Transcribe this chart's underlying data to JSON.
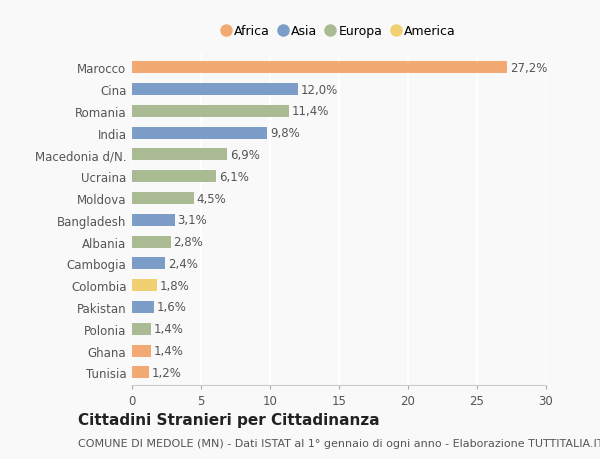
{
  "categories": [
    "Marocco",
    "Cina",
    "Romania",
    "India",
    "Macedonia d/N.",
    "Ucraina",
    "Moldova",
    "Bangladesh",
    "Albania",
    "Cambogia",
    "Colombia",
    "Pakistan",
    "Polonia",
    "Ghana",
    "Tunisia"
  ],
  "values": [
    27.2,
    12.0,
    11.4,
    9.8,
    6.9,
    6.1,
    4.5,
    3.1,
    2.8,
    2.4,
    1.8,
    1.6,
    1.4,
    1.4,
    1.2
  ],
  "labels": [
    "27,2%",
    "12,0%",
    "11,4%",
    "9,8%",
    "6,9%",
    "6,1%",
    "4,5%",
    "3,1%",
    "2,8%",
    "2,4%",
    "1,8%",
    "1,6%",
    "1,4%",
    "1,4%",
    "1,2%"
  ],
  "continents": [
    "Africa",
    "Asia",
    "Europa",
    "Asia",
    "Europa",
    "Europa",
    "Europa",
    "Asia",
    "Europa",
    "Asia",
    "America",
    "Asia",
    "Europa",
    "Africa",
    "Africa"
  ],
  "colors": {
    "Africa": "#F2AA72",
    "Asia": "#7B9DC8",
    "Europa": "#AABB94",
    "America": "#F0D070"
  },
  "legend_order": [
    "Africa",
    "Asia",
    "Europa",
    "America"
  ],
  "xlim": [
    0,
    30
  ],
  "xticks": [
    0,
    5,
    10,
    15,
    20,
    25,
    30
  ],
  "title": "Cittadini Stranieri per Cittadinanza",
  "subtitle": "COMUNE DI MEDOLE (MN) - Dati ISTAT al 1° gennaio di ogni anno - Elaborazione TUTTITALIA.IT",
  "background_color": "#f9f9f9",
  "bar_height": 0.55,
  "label_fontsize": 8.5,
  "tick_fontsize": 8.5,
  "title_fontsize": 11,
  "subtitle_fontsize": 8
}
